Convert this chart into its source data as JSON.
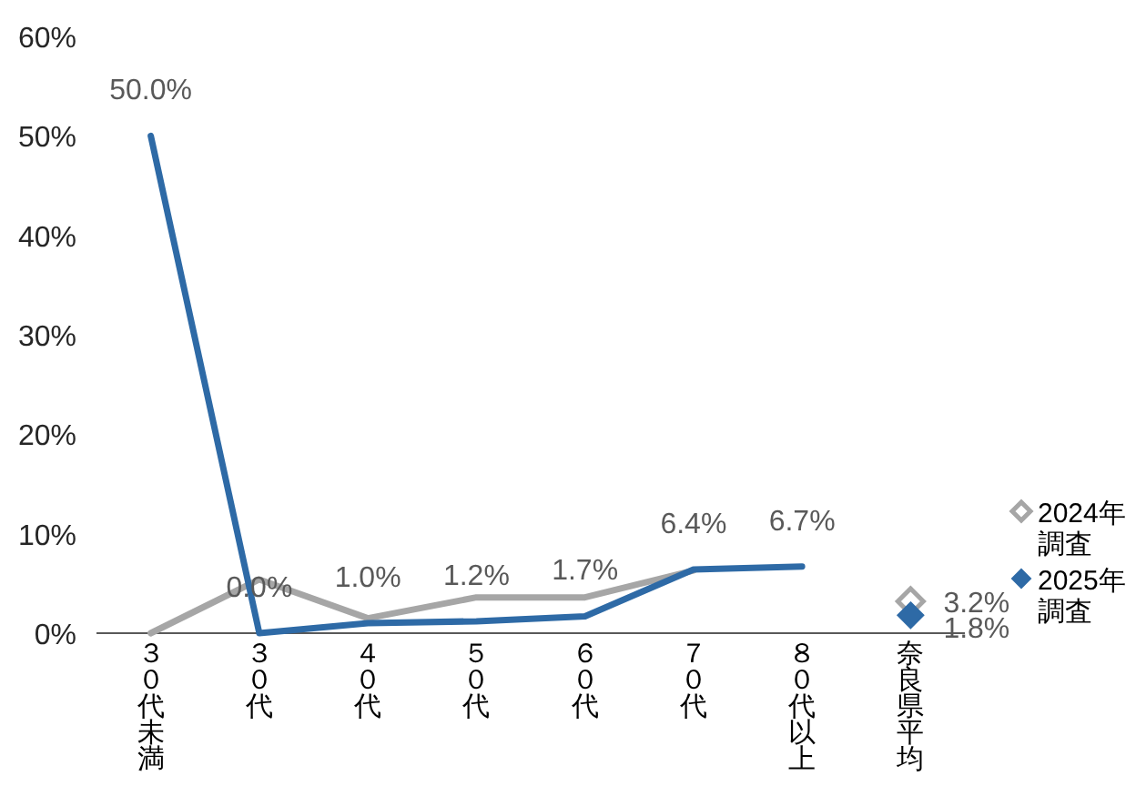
{
  "chart_data": {
    "type": "line",
    "categories": [
      "３０代未満",
      "３０代",
      "４０代",
      "５０代",
      "６０代",
      "７０代",
      "８０代以上",
      "奈良県平均"
    ],
    "ylim": [
      0,
      60
    ],
    "yticks": [
      {
        "value": 0,
        "label": "0%"
      },
      {
        "value": 10,
        "label": "10%"
      },
      {
        "value": 20,
        "label": "20%"
      },
      {
        "value": 30,
        "label": "30%"
      },
      {
        "value": 40,
        "label": "40%"
      },
      {
        "value": 50,
        "label": "50%"
      },
      {
        "value": 60,
        "label": "60%"
      }
    ],
    "series": [
      {
        "name": "2024年調査",
        "color": "#a6a6a6",
        "values": [
          0,
          5.4,
          1.5,
          3.6,
          3.6,
          6.3,
          null,
          null
        ],
        "value_labels": [
          null,
          null,
          null,
          null,
          null,
          null,
          null,
          null
        ]
      },
      {
        "name": "2025年調査",
        "color": "#2e6aa6",
        "values": [
          50,
          0,
          1,
          1.2,
          1.7,
          6.4,
          6.7,
          null
        ],
        "value_labels": [
          "50.0%",
          "0.0%",
          "1.0%",
          "1.2%",
          "1.7%",
          "6.4%",
          "6.7%",
          null
        ]
      },
      {
        "type": "scatter",
        "color": "#a6a6a6",
        "marker": "diamond",
        "x": [
          "奈良県平均"
        ],
        "values": [
          3.2
        ],
        "value_labels": [
          "3.2%"
        ]
      },
      {
        "type": "scatter",
        "color": "#2e6aa6",
        "marker": "diamond",
        "x": [
          "奈良県平均"
        ],
        "values": [
          1.8
        ],
        "value_labels": [
          "1.8%"
        ]
      }
    ],
    "marker": "none",
    "grid": false,
    "legend": "right"
  }
}
